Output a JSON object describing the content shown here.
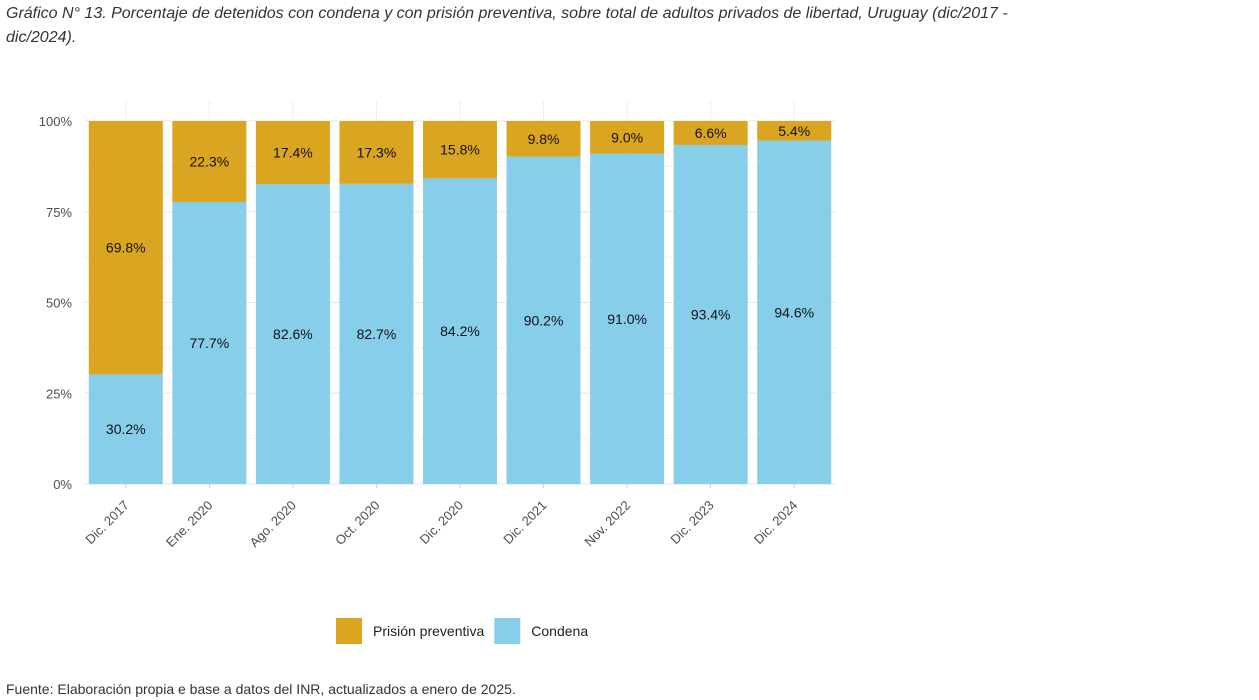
{
  "title": "Gráfico N° 13. Porcentaje de detenidos con condena y con prisión preventiva, sobre total de adultos privados de libertad, Uruguay (dic/2017 - dic/2024).",
  "source": "Fuente: Elaboración propia e base a datos del INR, actualizados a enero de 2025.",
  "chart_data": {
    "type": "bar",
    "stacked": true,
    "categories": [
      "Dic. 2017",
      "Ene. 2020",
      "Ago. 2020",
      "Oct. 2020",
      "Dic. 2020",
      "Dic. 2021",
      "Nov. 2022",
      "Dic. 2023",
      "Dic. 2024"
    ],
    "series": [
      {
        "name": "Condena",
        "color": "#87CEEB",
        "values": [
          30.2,
          77.7,
          82.6,
          82.7,
          84.2,
          90.2,
          91.0,
          93.4,
          94.6
        ],
        "labels": [
          "30.2%",
          "77.7%",
          "82.6%",
          "82.7%",
          "84.2%",
          "90.2%",
          "91.0%",
          "93.4%",
          "94.6%"
        ]
      },
      {
        "name": "Prisión preventiva",
        "color": "#DAA520",
        "values": [
          69.8,
          22.3,
          17.4,
          17.3,
          15.8,
          9.8,
          9.0,
          6.6,
          5.4
        ],
        "labels": [
          "69.8%",
          "22.3%",
          "17.4%",
          "17.3%",
          "15.8%",
          "9.8%",
          "9.0%",
          "6.6%",
          "5.4%"
        ]
      }
    ],
    "ylim": [
      0,
      100
    ],
    "yticks": [
      0,
      25,
      50,
      75,
      100
    ],
    "ytick_labels": [
      "0%",
      "25%",
      "50%",
      "75%",
      "100%"
    ],
    "legend": {
      "position": "bottom",
      "entries": [
        "Prisión preventiva",
        "Condena"
      ]
    },
    "grid": true
  }
}
